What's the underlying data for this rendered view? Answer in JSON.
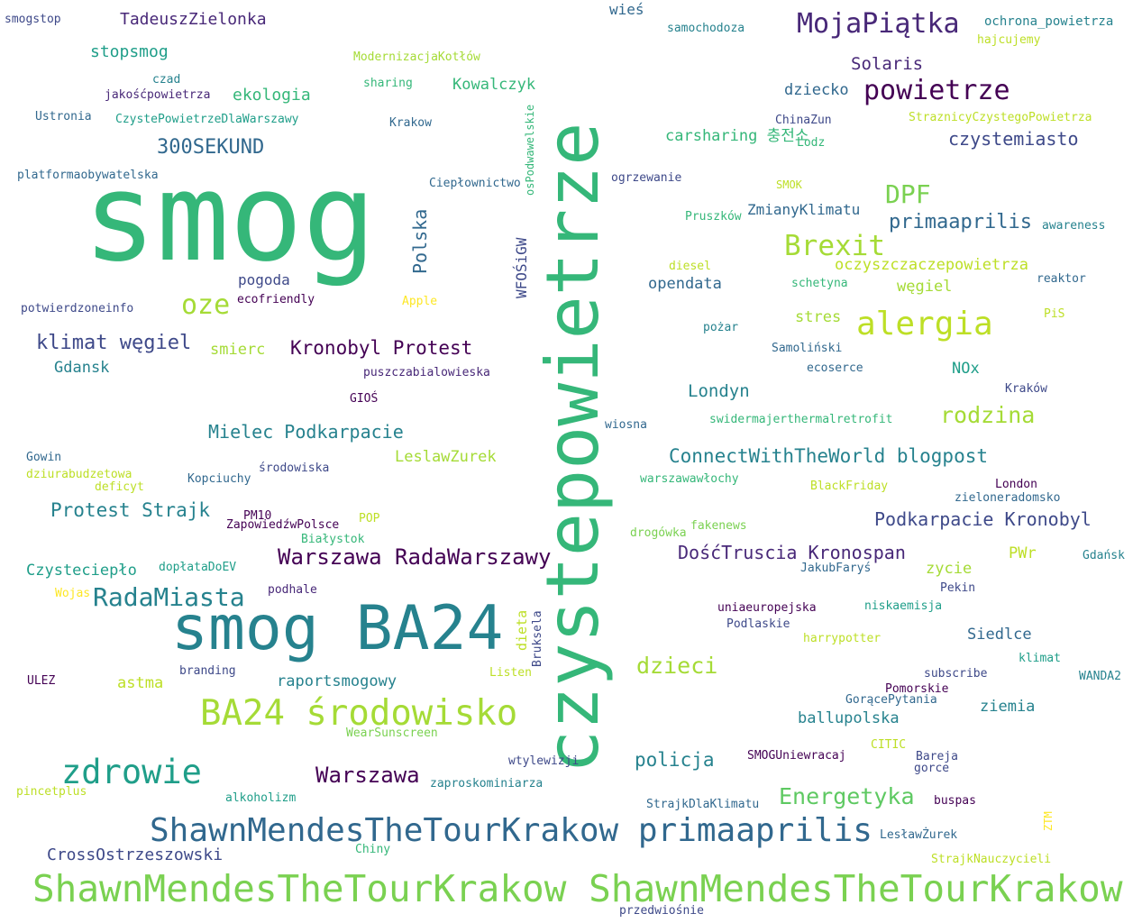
{
  "words": [
    {
      "text": "smog",
      "color": "#35b779"
    },
    {
      "text": "czystepowietrze",
      "color": "#35b779"
    },
    {
      "text": "smog BA24",
      "color": "#26828e"
    },
    {
      "text": "ShawnMendesTheTourKrakow ShawnMendesTheTourKrakow",
      "color": "#7ad151"
    },
    {
      "text": "ShawnMendesTheTourKrakow primaaprilis",
      "color": "#31688e"
    },
    {
      "text": "BA24 środowisko",
      "color": "#a5db36"
    },
    {
      "text": "zdrowie",
      "color": "#1f9e89"
    },
    {
      "text": "MojaPiątka",
      "color": "#482878"
    },
    {
      "text": "powietrze",
      "color": "#440154"
    },
    {
      "text": "alergia",
      "color": "#bddf26"
    },
    {
      "text": "Brexit",
      "color": "#a5db36"
    },
    {
      "text": "DPF",
      "color": "#7ad151"
    },
    {
      "text": "oze",
      "color": "#a5db36"
    },
    {
      "text": "RadaMiasta",
      "color": "#26828e"
    },
    {
      "text": "Warszawa RadaWarszawy",
      "color": "#440154"
    },
    {
      "text": "Warszawa",
      "color": "#440154"
    },
    {
      "text": "dzieci",
      "color": "#a5db36"
    },
    {
      "text": "Energetyka",
      "color": "#5ec962"
    },
    {
      "text": "300SEKUND",
      "color": "#31688e"
    },
    {
      "text": "klimat węgiel",
      "color": "#3e4989"
    },
    {
      "text": "Kronobyl Protest",
      "color": "#440154"
    },
    {
      "text": "Mielec Podkarpacie",
      "color": "#26828e"
    },
    {
      "text": "Protest Strajk",
      "color": "#26828e"
    },
    {
      "text": "ConnectWithTheWorld blogpost",
      "color": "#26828e"
    },
    {
      "text": "rodzina",
      "color": "#a5db36"
    },
    {
      "text": "primaaprilis",
      "color": "#31688e"
    },
    {
      "text": "czystemiasto",
      "color": "#3e4989"
    },
    {
      "text": "Podkarpacie Kronobyl",
      "color": "#3e4989"
    },
    {
      "text": "DośćTruscia Kronospan",
      "color": "#482878"
    },
    {
      "text": "Polska",
      "color": "#31688e"
    },
    {
      "text": "CrossOstrzeszowski",
      "color": "#3e4989"
    },
    {
      "text": "policja",
      "color": "#26828e"
    },
    {
      "text": "TadeuszZielonka",
      "color": "#482878"
    },
    {
      "text": "Solaris",
      "color": "#482878"
    },
    {
      "text": "stopsmog",
      "color": "#1f9e89"
    },
    {
      "text": "ekologia",
      "color": "#35b779"
    },
    {
      "text": "Kowalczyk",
      "color": "#35b779"
    },
    {
      "text": "dziecko",
      "color": "#31688e"
    },
    {
      "text": "carsharing 충전소",
      "color": "#35b779"
    },
    {
      "text": "ZmianyKlimatu",
      "color": "#31688e"
    },
    {
      "text": "oczyszczaczepowietrza",
      "color": "#bddf26"
    },
    {
      "text": "węgiel",
      "color": "#a5db36"
    },
    {
      "text": "opendata",
      "color": "#31688e"
    },
    {
      "text": "pogoda",
      "color": "#3e4989"
    },
    {
      "text": "stres",
      "color": "#a5db36"
    },
    {
      "text": "smierc",
      "color": "#a5db36"
    },
    {
      "text": "Gdansk",
      "color": "#26828e"
    },
    {
      "text": "Londyn",
      "color": "#26828e"
    },
    {
      "text": "NOx",
      "color": "#1f9e89"
    },
    {
      "text": "LeslawZurek",
      "color": "#a5db36"
    },
    {
      "text": "zycie",
      "color": "#a5db36"
    },
    {
      "text": "PWr",
      "color": "#bddf26"
    },
    {
      "text": "Czysteciepło",
      "color": "#1f9e89"
    },
    {
      "text": "Siedlce",
      "color": "#31688e"
    },
    {
      "text": "raportsmogowy",
      "color": "#26828e"
    },
    {
      "text": "astma",
      "color": "#bddf26"
    },
    {
      "text": "ballupolska",
      "color": "#26828e"
    },
    {
      "text": "ziemia",
      "color": "#26828e"
    },
    {
      "text": "WFOŚiGW",
      "color": "#3e4989"
    },
    {
      "text": "dieta",
      "color": "#bddf26"
    },
    {
      "text": "smogstop",
      "color": "#3e4989"
    },
    {
      "text": "wieś",
      "color": "#31688e"
    },
    {
      "text": "samochodoza",
      "color": "#26828e"
    },
    {
      "text": "ochrona_powietrza",
      "color": "#26828e"
    },
    {
      "text": "hajcujemy",
      "color": "#bddf26"
    },
    {
      "text": "ModernizacjaKotłów",
      "color": "#a5db36"
    },
    {
      "text": "czad",
      "color": "#26828e"
    },
    {
      "text": "sharing",
      "color": "#35b779"
    },
    {
      "text": "jakośćpowietrza",
      "color": "#482878"
    },
    {
      "text": "Ustronia",
      "color": "#31688e"
    },
    {
      "text": "CzystePowietrzeDlaWarszawy",
      "color": "#1f9e89"
    },
    {
      "text": "Krakow",
      "color": "#31688e"
    },
    {
      "text": "ChinaZun",
      "color": "#3e4989"
    },
    {
      "text": "StraznicyCzystegoPowietrza",
      "color": "#bddf26"
    },
    {
      "text": "Lodz",
      "color": "#35b779"
    },
    {
      "text": "osPodwawelskie",
      "color": "#35b779"
    },
    {
      "text": "platformaobywatelska",
      "color": "#31688e"
    },
    {
      "text": "Ciepłownictwo",
      "color": "#31688e"
    },
    {
      "text": "ogrzewanie",
      "color": "#3e4989"
    },
    {
      "text": "SMOK",
      "color": "#bddf26"
    },
    {
      "text": "Pruszków",
      "color": "#35b779"
    },
    {
      "text": "awareness",
      "color": "#26828e"
    },
    {
      "text": "diesel",
      "color": "#bddf26"
    },
    {
      "text": "schetyna",
      "color": "#35b779"
    },
    {
      "text": "reaktor",
      "color": "#31688e"
    },
    {
      "text": "potwierdzoneinfo",
      "color": "#3e4989"
    },
    {
      "text": "ecofriendly",
      "color": "#440154"
    },
    {
      "text": "Apple",
      "color": "#fde725"
    },
    {
      "text": "pożar",
      "color": "#26828e"
    },
    {
      "text": "PiS",
      "color": "#bddf26"
    },
    {
      "text": "Samoliński",
      "color": "#31688e"
    },
    {
      "text": "ecoserce",
      "color": "#31688e"
    },
    {
      "text": "puszczabialowieska",
      "color": "#482878"
    },
    {
      "text": "GIOŚ",
      "color": "#440154"
    },
    {
      "text": "Kraków",
      "color": "#3e4989"
    },
    {
      "text": "wiosna",
      "color": "#31688e"
    },
    {
      "text": "swidermajerthermalretrofit",
      "color": "#35b779"
    },
    {
      "text": "Gowin",
      "color": "#31688e"
    },
    {
      "text": "dziurabudzetowa",
      "color": "#bddf26"
    },
    {
      "text": "Kopciuchy",
      "color": "#31688e"
    },
    {
      "text": "środowiska",
      "color": "#3e4989"
    },
    {
      "text": "deficyt",
      "color": "#bddf26"
    },
    {
      "text": "warszawawłochy",
      "color": "#35b779"
    },
    {
      "text": "BlackFriday",
      "color": "#bddf26"
    },
    {
      "text": "London",
      "color": "#440154"
    },
    {
      "text": "zieloneradomsko",
      "color": "#31688e"
    },
    {
      "text": "PM10",
      "color": "#440154"
    },
    {
      "text": "ZapowiedźwPolsce",
      "color": "#440154"
    },
    {
      "text": "POP",
      "color": "#bddf26"
    },
    {
      "text": "Białystok",
      "color": "#35b779"
    },
    {
      "text": "fakenews",
      "color": "#7ad151"
    },
    {
      "text": "drogówka",
      "color": "#7ad151"
    },
    {
      "text": "Gdańsk",
      "color": "#26828e"
    },
    {
      "text": "dopłataDoEV",
      "color": "#1f9e89"
    },
    {
      "text": "JakubFaryś",
      "color": "#31688e"
    },
    {
      "text": "Pekin",
      "color": "#3e4989"
    },
    {
      "text": "Wojas",
      "color": "#fde725"
    },
    {
      "text": "podhale",
      "color": "#482878"
    },
    {
      "text": "Bruksela",
      "color": "#3e4989"
    },
    {
      "text": "uniaeuropejska",
      "color": "#440154"
    },
    {
      "text": "niskaemisja",
      "color": "#1f9e89"
    },
    {
      "text": "Podlaskie",
      "color": "#3e4989"
    },
    {
      "text": "harrypotter",
      "color": "#bddf26"
    },
    {
      "text": "klimat",
      "color": "#1f9e89"
    },
    {
      "text": "branding",
      "color": "#3e4989"
    },
    {
      "text": "Listen",
      "color": "#bddf26"
    },
    {
      "text": "subscribe",
      "color": "#3e4989"
    },
    {
      "text": "WANDA2",
      "color": "#26828e"
    },
    {
      "text": "Pomorskie",
      "color": "#440154"
    },
    {
      "text": "ULEZ",
      "color": "#440154"
    },
    {
      "text": "GorącePytania",
      "color": "#31688e"
    },
    {
      "text": "WearSunscreen",
      "color": "#7ad151"
    },
    {
      "text": "CITIC",
      "color": "#bddf26"
    },
    {
      "text": "SMOGUniewracaj",
      "color": "#440154"
    },
    {
      "text": "Bareja",
      "color": "#3e4989"
    },
    {
      "text": "gorce",
      "color": "#3e4989"
    },
    {
      "text": "wtylewizji",
      "color": "#3e4989"
    },
    {
      "text": "pincetplus",
      "color": "#bddf26"
    },
    {
      "text": "zaproskominiarza",
      "color": "#26828e"
    },
    {
      "text": "alkoholizm",
      "color": "#1f9e89"
    },
    {
      "text": "StrajkDlaKlimatu",
      "color": "#31688e"
    },
    {
      "text": "buspas",
      "color": "#440154"
    },
    {
      "text": "ZTM",
      "color": "#fde725"
    },
    {
      "text": "LesławŻurek",
      "color": "#31688e"
    },
    {
      "text": "Chiny",
      "color": "#35b779"
    },
    {
      "text": "StrajkNauczycieli",
      "color": "#bddf26"
    },
    {
      "text": "przedwiośnie",
      "color": "#3e4989"
    }
  ]
}
